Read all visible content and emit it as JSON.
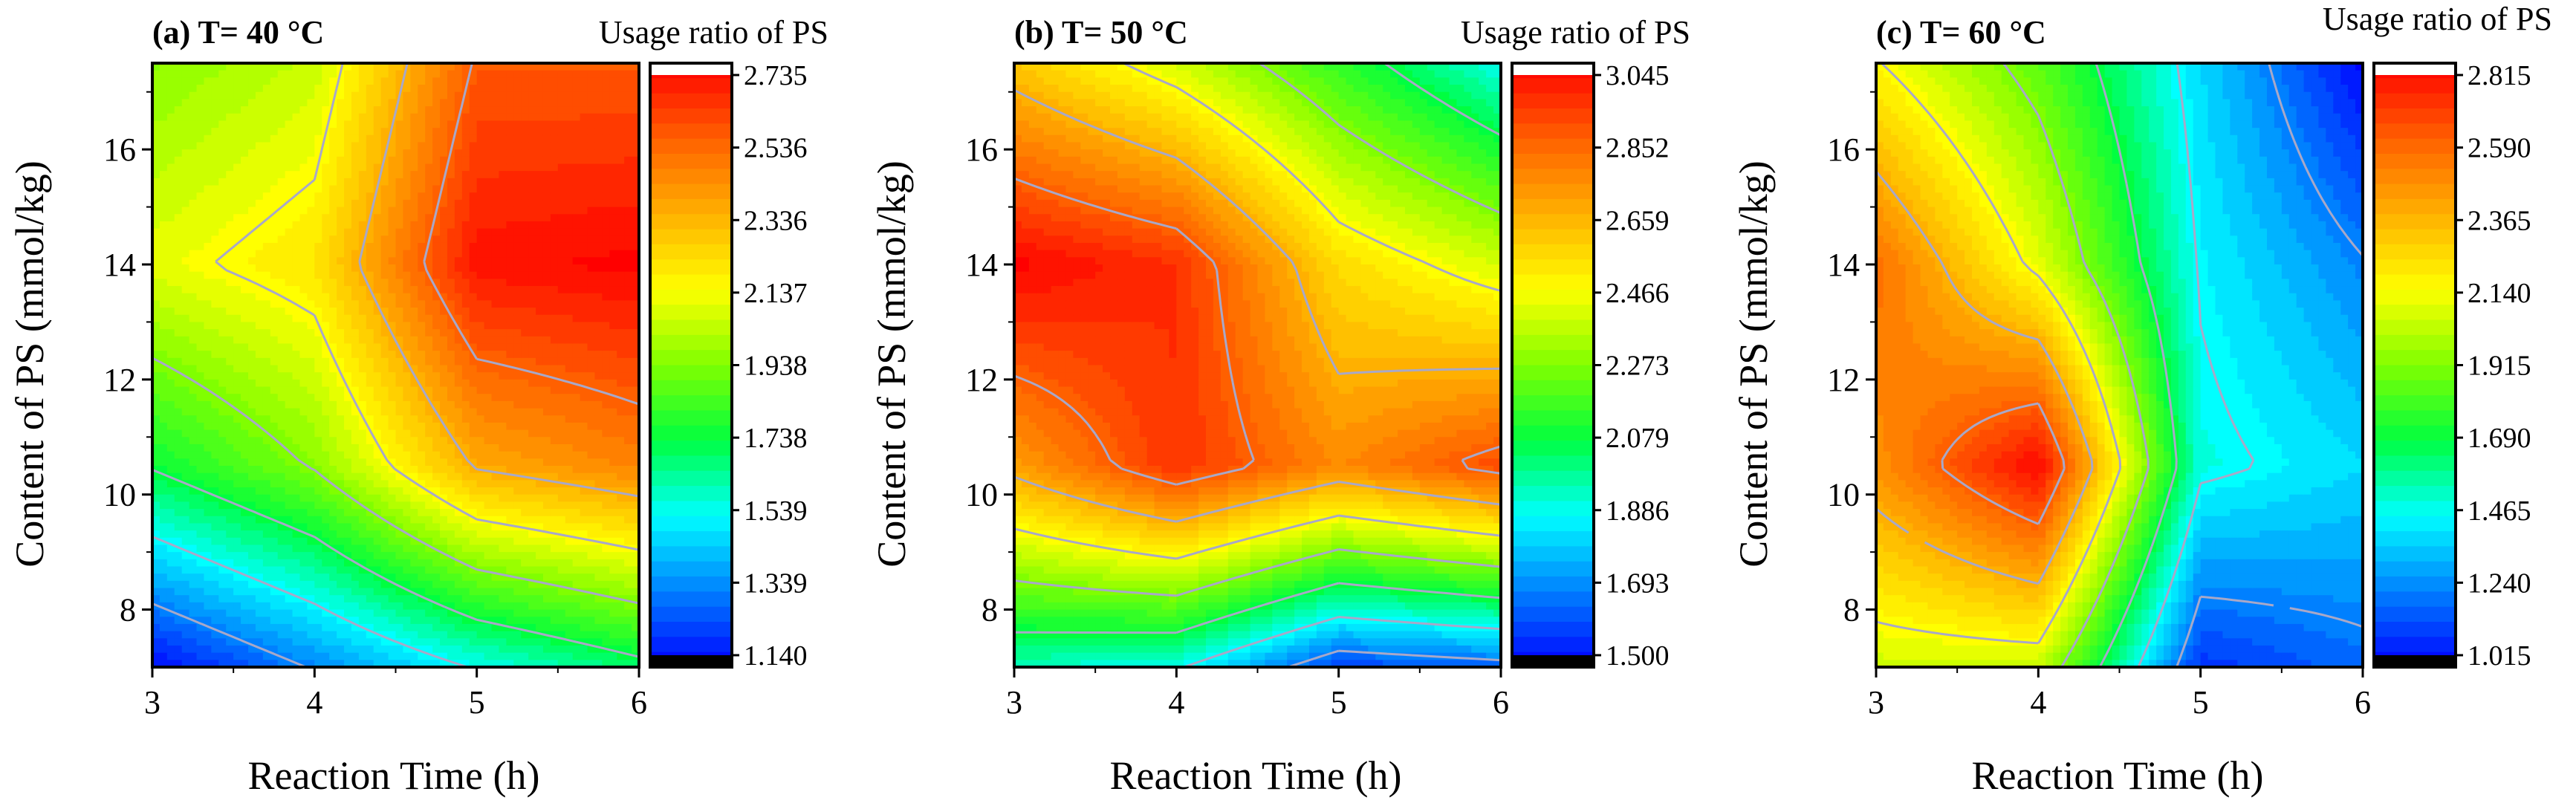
{
  "figure": {
    "x_label": "Reaction Time (h)",
    "y_label": "Content of PS (mmol/kg)",
    "colorbar_title": "Usage ratio of PS",
    "colors": {
      "palette": [
        "#0000ff",
        "#0080ff",
        "#00ffff",
        "#00ff40",
        "#80ff00",
        "#ffff00",
        "#ffb000",
        "#ff6000",
        "#ff0000"
      ],
      "contour_line": "#a8a8c8",
      "axis": "#000000"
    }
  },
  "chart_data": [
    {
      "type": "contour",
      "title": "(a) T= 40 °C",
      "colorbar_title": "Usage ratio of PS",
      "xlabel": "Reaction Time (h)",
      "ylabel": "Content of PS (mmol/kg)",
      "x": [
        3,
        4,
        5,
        6
      ],
      "y": [
        7,
        10.5,
        14,
        17.5
      ],
      "z": [
        [
          1.15,
          1.35,
          1.55,
          1.7
        ],
        [
          1.75,
          1.95,
          2.35,
          2.45
        ],
        [
          2.1,
          2.2,
          2.7,
          2.73
        ],
        [
          1.95,
          2.05,
          2.55,
          2.55
        ]
      ],
      "xlim": [
        3,
        6
      ],
      "ylim": [
        7,
        17.5
      ],
      "xticks": [
        "3",
        "4",
        "5",
        "6"
      ],
      "yticks": [
        "8",
        "10",
        "12",
        "14",
        "16"
      ],
      "colorbar_range": [
        1.14,
        2.735
      ],
      "colorbar_ticks": [
        "2.735",
        "2.536",
        "2.336",
        "2.137",
        "1.938",
        "1.738",
        "1.539",
        "1.339",
        "1.140"
      ]
    },
    {
      "type": "contour",
      "title": "(b) T= 50 °C",
      "colorbar_title": "Usage ratio of PS",
      "xlabel": "Reaction Time (h)",
      "ylabel": "Content of PS (mmol/kg)",
      "x": [
        3,
        4,
        5,
        6
      ],
      "y": [
        7,
        10.5,
        14,
        17.5
      ],
      "z": [
        [
          1.95,
          1.9,
          1.6,
          1.65
        ],
        [
          2.7,
          2.95,
          2.75,
          2.9
        ],
        [
          3.04,
          2.95,
          2.55,
          2.4
        ],
        [
          2.6,
          2.4,
          2.15,
          1.9
        ]
      ],
      "xlim": [
        3,
        6
      ],
      "ylim": [
        7,
        17.5
      ],
      "xticks": [
        "3",
        "4",
        "5",
        "6"
      ],
      "yticks": [
        "8",
        "10",
        "12",
        "14",
        "16"
      ],
      "colorbar_range": [
        1.5,
        3.045
      ],
      "colorbar_ticks": [
        "3.045",
        "2.852",
        "2.659",
        "2.466",
        "2.273",
        "2.079",
        "1.886",
        "1.693",
        "1.500"
      ]
    },
    {
      "type": "contour",
      "title": "(c) T= 60 °C",
      "colorbar_title": "Usage ratio of PS",
      "xlabel": "Reaction Time (h)",
      "ylabel": "Content of PS (mmol/kg)",
      "x": [
        3,
        4,
        5,
        6
      ],
      "y": [
        7,
        10.5,
        14,
        17.5
      ],
      "z": [
        [
          2.05,
          2.05,
          1.1,
          1.2
        ],
        [
          2.45,
          2.81,
          1.5,
          1.4
        ],
        [
          2.55,
          2.1,
          1.45,
          1.25
        ],
        [
          2.15,
          1.85,
          1.4,
          1.02
        ]
      ],
      "xlim": [
        3,
        6
      ],
      "ylim": [
        7,
        17.5
      ],
      "xticks": [
        "3",
        "4",
        "5",
        "6"
      ],
      "yticks": [
        "8",
        "10",
        "12",
        "14",
        "16"
      ],
      "colorbar_range": [
        1.015,
        2.815
      ],
      "colorbar_ticks": [
        "2.815",
        "2.590",
        "2.365",
        "2.140",
        "1.915",
        "1.690",
        "1.465",
        "1.240",
        "1.015"
      ]
    }
  ]
}
